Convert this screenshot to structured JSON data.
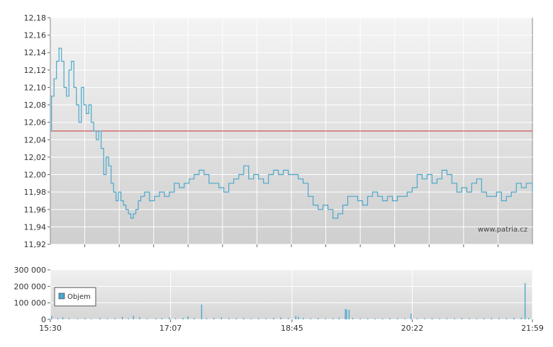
{
  "chart_data": [
    {
      "type": "line",
      "title": "",
      "xlabel": "",
      "ylabel": "",
      "watermark": "www.patria.cz",
      "ylim": [
        11.92,
        12.18
      ],
      "y_ticks": [
        "12,18",
        "12,16",
        "12,14",
        "12,12",
        "12,10",
        "12,08",
        "12,06",
        "12,04",
        "12,02",
        "12,00",
        "11,98",
        "11,96",
        "11,94",
        "11,92"
      ],
      "reference_line": {
        "value": 12.05,
        "color": "#cc3333"
      },
      "line_color": "#4aa8cc",
      "grid": true,
      "x_start_minutes": 930,
      "x_end_minutes": 1319,
      "series": [
        {
          "name": "",
          "points": [
            [
              930,
              12.05
            ],
            [
              931,
              12.09
            ],
            [
              933,
              12.11
            ],
            [
              935,
              12.13
            ],
            [
              937,
              12.145
            ],
            [
              939,
              12.13
            ],
            [
              941,
              12.1
            ],
            [
              943,
              12.09
            ],
            [
              945,
              12.12
            ],
            [
              947,
              12.13
            ],
            [
              949,
              12.1
            ],
            [
              951,
              12.08
            ],
            [
              953,
              12.06
            ],
            [
              955,
              12.1
            ],
            [
              957,
              12.08
            ],
            [
              959,
              12.07
            ],
            [
              961,
              12.08
            ],
            [
              963,
              12.06
            ],
            [
              965,
              12.05
            ],
            [
              967,
              12.04
            ],
            [
              969,
              12.05
            ],
            [
              971,
              12.03
            ],
            [
              973,
              12.0
            ],
            [
              975,
              12.02
            ],
            [
              977,
              12.01
            ],
            [
              979,
              11.99
            ],
            [
              981,
              11.98
            ],
            [
              983,
              11.97
            ],
            [
              985,
              11.98
            ],
            [
              987,
              11.97
            ],
            [
              989,
              11.965
            ],
            [
              991,
              11.96
            ],
            [
              993,
              11.955
            ],
            [
              995,
              11.95
            ],
            [
              997,
              11.955
            ],
            [
              999,
              11.96
            ],
            [
              1001,
              11.97
            ],
            [
              1003,
              11.975
            ],
            [
              1006,
              11.98
            ],
            [
              1010,
              11.97
            ],
            [
              1014,
              11.975
            ],
            [
              1018,
              11.98
            ],
            [
              1022,
              11.975
            ],
            [
              1026,
              11.98
            ],
            [
              1030,
              11.99
            ],
            [
              1034,
              11.985
            ],
            [
              1038,
              11.99
            ],
            [
              1042,
              11.995
            ],
            [
              1046,
              12.0
            ],
            [
              1050,
              12.005
            ],
            [
              1054,
              12.0
            ],
            [
              1058,
              11.99
            ],
            [
              1062,
              11.99
            ],
            [
              1066,
              11.985
            ],
            [
              1070,
              11.98
            ],
            [
              1074,
              11.99
            ],
            [
              1078,
              11.995
            ],
            [
              1082,
              12.0
            ],
            [
              1086,
              12.01
            ],
            [
              1090,
              11.995
            ],
            [
              1094,
              12.0
            ],
            [
              1098,
              11.995
            ],
            [
              1102,
              11.99
            ],
            [
              1106,
              12.0
            ],
            [
              1110,
              12.005
            ],
            [
              1114,
              12.0
            ],
            [
              1118,
              12.005
            ],
            [
              1122,
              12.0
            ],
            [
              1126,
              12.0
            ],
            [
              1130,
              11.995
            ],
            [
              1134,
              11.99
            ],
            [
              1138,
              11.975
            ],
            [
              1142,
              11.965
            ],
            [
              1146,
              11.96
            ],
            [
              1150,
              11.965
            ],
            [
              1154,
              11.96
            ],
            [
              1158,
              11.95
            ],
            [
              1162,
              11.955
            ],
            [
              1166,
              11.965
            ],
            [
              1170,
              11.975
            ],
            [
              1174,
              11.975
            ],
            [
              1178,
              11.97
            ],
            [
              1182,
              11.965
            ],
            [
              1186,
              11.975
            ],
            [
              1190,
              11.98
            ],
            [
              1194,
              11.975
            ],
            [
              1198,
              11.97
            ],
            [
              1202,
              11.975
            ],
            [
              1206,
              11.97
            ],
            [
              1210,
              11.975
            ],
            [
              1214,
              11.975
            ],
            [
              1218,
              11.98
            ],
            [
              1222,
              11.985
            ],
            [
              1226,
              12.0
            ],
            [
              1230,
              11.995
            ],
            [
              1234,
              12.0
            ],
            [
              1238,
              11.99
            ],
            [
              1242,
              11.995
            ],
            [
              1246,
              12.005
            ],
            [
              1250,
              12.0
            ],
            [
              1254,
              11.99
            ],
            [
              1258,
              11.98
            ],
            [
              1262,
              11.985
            ],
            [
              1266,
              11.98
            ],
            [
              1270,
              11.99
            ],
            [
              1274,
              11.995
            ],
            [
              1278,
              11.98
            ],
            [
              1282,
              11.975
            ],
            [
              1286,
              11.975
            ],
            [
              1290,
              11.98
            ],
            [
              1294,
              11.97
            ],
            [
              1298,
              11.975
            ],
            [
              1302,
              11.98
            ],
            [
              1306,
              11.99
            ],
            [
              1310,
              11.985
            ],
            [
              1314,
              11.99
            ],
            [
              1319,
              11.98
            ]
          ]
        }
      ]
    },
    {
      "type": "bar",
      "title": "",
      "ylim": [
        0,
        300000
      ],
      "y_ticks": [
        "300 000",
        "200 000",
        "100 000",
        "0"
      ],
      "x_ticks": [
        "15:30",
        "17:07",
        "18:45",
        "20:22",
        "21:59"
      ],
      "x_tick_minutes": [
        930,
        1027,
        1125,
        1222,
        1319
      ],
      "legend": [
        "Objem"
      ],
      "legend_position": "left",
      "bar_color": "#4aa8cc",
      "grid": true,
      "series": [
        {
          "name": "Objem",
          "points": [
            [
              931,
              20000
            ],
            [
              936,
              8000
            ],
            [
              940,
              12000
            ],
            [
              945,
              6000
            ],
            [
              952,
              5000
            ],
            [
              958,
              7000
            ],
            [
              963,
              4000
            ],
            [
              970,
              9000
            ],
            [
              976,
              5000
            ],
            [
              982,
              6000
            ],
            [
              988,
              15000
            ],
            [
              993,
              6000
            ],
            [
              997,
              22000
            ],
            [
              1002,
              12000
            ],
            [
              1008,
              5000
            ],
            [
              1015,
              6000
            ],
            [
              1020,
              8000
            ],
            [
              1026,
              12000
            ],
            [
              1031,
              6000
            ],
            [
              1037,
              10000
            ],
            [
              1041,
              18000
            ],
            [
              1046,
              8000
            ],
            [
              1052,
              90000
            ],
            [
              1056,
              6000
            ],
            [
              1062,
              9000
            ],
            [
              1068,
              12000
            ],
            [
              1074,
              7000
            ],
            [
              1080,
              6000
            ],
            [
              1086,
              8000
            ],
            [
              1092,
              5000
            ],
            [
              1098,
              7000
            ],
            [
              1104,
              6000
            ],
            [
              1110,
              9000
            ],
            [
              1116,
              12000
            ],
            [
              1122,
              7000
            ],
            [
              1128,
              20000
            ],
            [
              1130,
              15000
            ],
            [
              1134,
              9000
            ],
            [
              1140,
              6000
            ],
            [
              1146,
              8000
            ],
            [
              1152,
              5000
            ],
            [
              1158,
              7000
            ],
            [
              1163,
              10000
            ],
            [
              1168,
              62000
            ],
            [
              1169,
              60000
            ],
            [
              1171,
              58000
            ],
            [
              1174,
              8000
            ],
            [
              1180,
              6000
            ],
            [
              1186,
              7000
            ],
            [
              1192,
              5000
            ],
            [
              1198,
              6000
            ],
            [
              1204,
              8000
            ],
            [
              1210,
              7000
            ],
            [
              1216,
              6000
            ],
            [
              1221,
              35000
            ],
            [
              1226,
              7000
            ],
            [
              1232,
              6000
            ],
            [
              1238,
              8000
            ],
            [
              1244,
              5000
            ],
            [
              1250,
              6000
            ],
            [
              1256,
              7000
            ],
            [
              1262,
              8000
            ],
            [
              1268,
              6000
            ],
            [
              1274,
              5000
            ],
            [
              1280,
              6000
            ],
            [
              1286,
              8000
            ],
            [
              1292,
              7000
            ],
            [
              1298,
              6000
            ],
            [
              1304,
              9000
            ],
            [
              1310,
              10000
            ],
            [
              1313,
              220000
            ],
            [
              1316,
              8000
            ]
          ]
        }
      ]
    }
  ]
}
